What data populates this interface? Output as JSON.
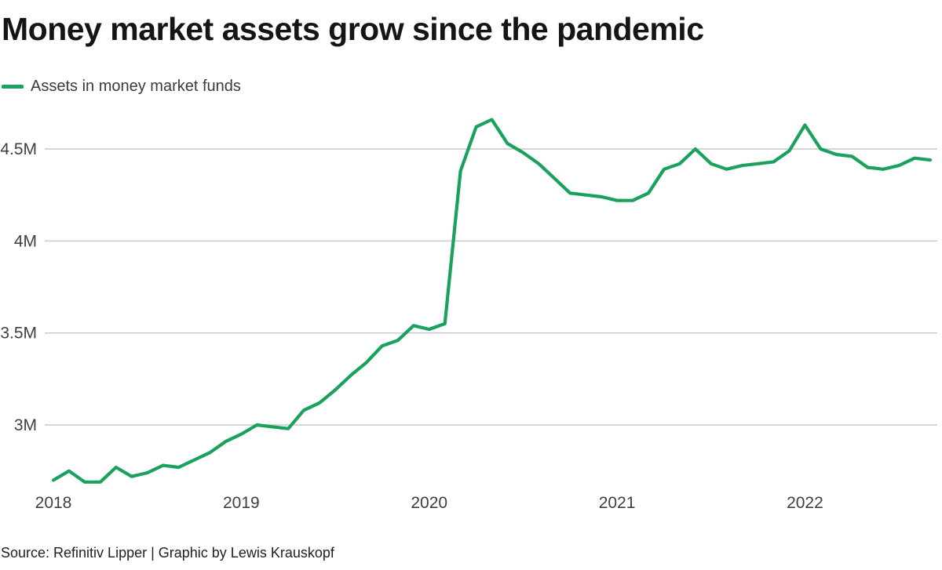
{
  "header": {
    "title": "Money market assets grow since the pandemic"
  },
  "legend": {
    "series_label": "Assets in money market funds"
  },
  "footer": {
    "source_line": "Source: Refinitiv Lipper | Graphic by Lewis Krauskopf"
  },
  "colors": {
    "line": "#1aa25c",
    "grid": "#c9c9c9",
    "axis_text": "#3f3f3f",
    "title_text": "#151515"
  },
  "chart_data": {
    "type": "line",
    "title": "Money market assets grow since the pandemic",
    "x_start": "2018-01",
    "x_end": "2022-09",
    "x_tick_labels": [
      "2018",
      "2019",
      "2020",
      "2021",
      "2022"
    ],
    "y_ticks": [
      3.0,
      3.5,
      4.0,
      4.5
    ],
    "y_tick_labels": [
      "3M",
      "3.5M",
      "4M",
      "4.5M"
    ],
    "ylim": [
      2.65,
      4.72
    ],
    "grid": true,
    "legend_position": "top-left",
    "series": [
      {
        "name": "Assets in money market funds",
        "unit": "M",
        "frequency": "monthly",
        "values": [
          2.7,
          2.75,
          2.69,
          2.69,
          2.77,
          2.72,
          2.74,
          2.78,
          2.77,
          2.81,
          2.85,
          2.91,
          2.95,
          3.0,
          2.99,
          2.98,
          3.08,
          3.12,
          3.19,
          3.27,
          3.34,
          3.43,
          3.46,
          3.54,
          3.52,
          3.55,
          4.38,
          4.62,
          4.66,
          4.53,
          4.48,
          4.42,
          4.34,
          4.26,
          4.25,
          4.24,
          4.22,
          4.22,
          4.26,
          4.39,
          4.42,
          4.5,
          4.42,
          4.39,
          4.41,
          4.42,
          4.43,
          4.49,
          4.63,
          4.5,
          4.47,
          4.46,
          4.4,
          4.39,
          4.41,
          4.45,
          4.44
        ]
      }
    ]
  }
}
